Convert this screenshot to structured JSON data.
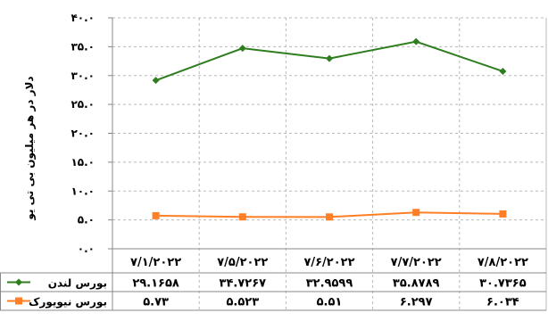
{
  "chart_data": {
    "type": "line",
    "title": "",
    "ylabel": "دلار در هر میلیون بی تی یو",
    "xlabel": "",
    "ylim": [
      0,
      40
    ],
    "yticks": [
      "۰.۰",
      "۵.۰",
      "۱۰.۰",
      "۱۵.۰",
      "۲۰.۰",
      "۲۵.۰",
      "۳۰.۰",
      "۳۵.۰",
      "۴۰.۰"
    ],
    "ytick_values": [
      0,
      5,
      10,
      15,
      20,
      25,
      30,
      35,
      40
    ],
    "grid": true,
    "legend": "table-left",
    "categories": [
      "۷/۱/۲۰۲۲",
      "۷/۵/۲۰۲۲",
      "۷/۶/۲۰۲۲",
      "۷/۷/۲۰۲۲",
      "۷/۸/۲۰۲۲"
    ],
    "series": [
      {
        "name": "بورس لندن",
        "values": [
          29.1658,
          34.7267,
          32.9599,
          35.8789,
          30.7365
        ],
        "labels": [
          "۲۹.۱۶۵۸",
          "۳۴.۷۲۶۷",
          "۳۲.۹۵۹۹",
          "۳۵.۸۷۸۹",
          "۳۰.۷۳۶۵"
        ],
        "color": "#2e7d1e",
        "marker": "diamond"
      },
      {
        "name": "بورس نیویورک",
        "values": [
          5.73,
          5.523,
          5.51,
          6.297,
          6.034
        ],
        "labels": [
          "۵.۷۳",
          "۵.۵۲۳",
          "۵.۵۱",
          "۶.۲۹۷",
          "۶.۰۳۴"
        ],
        "color": "#ff7f27",
        "marker": "square"
      }
    ]
  }
}
